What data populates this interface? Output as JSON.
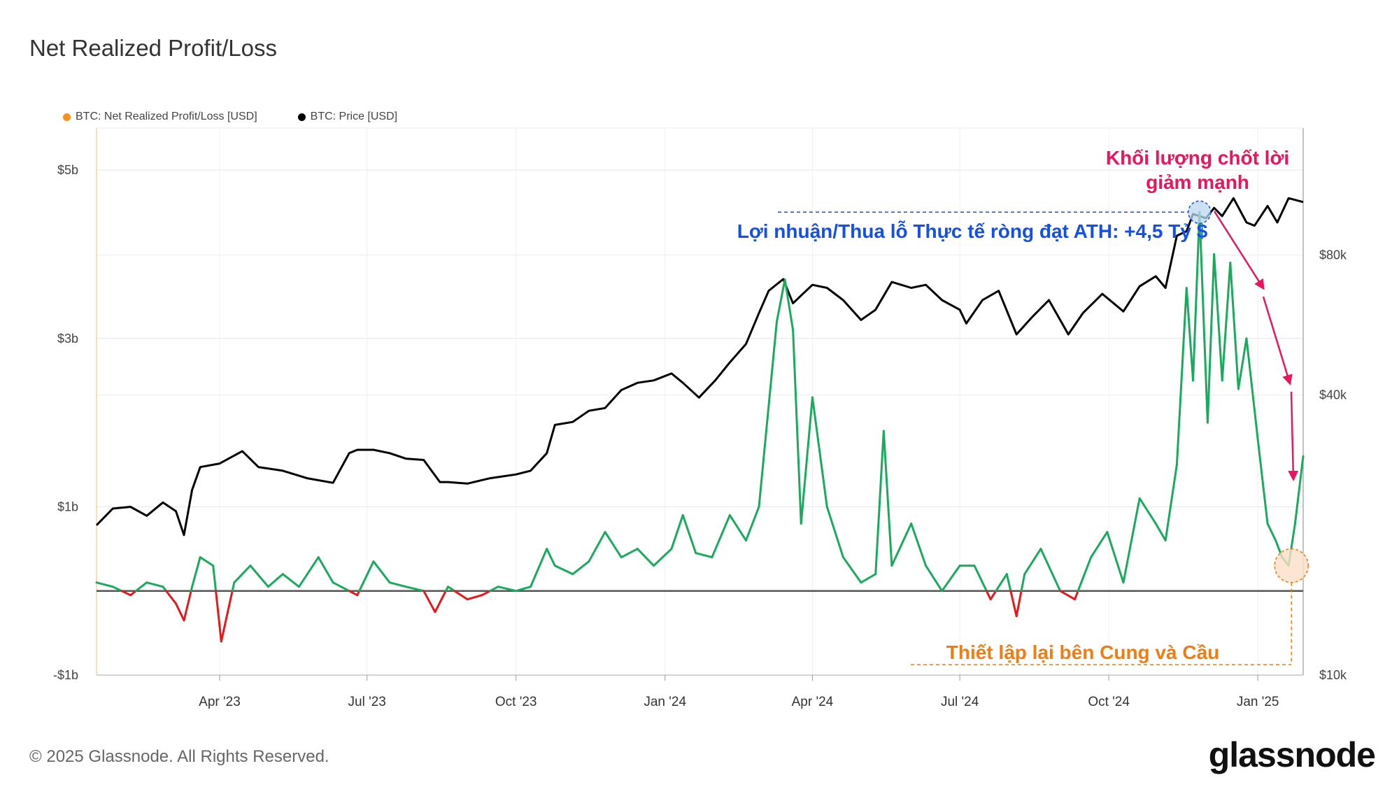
{
  "title": "Net Realized Profit/Loss",
  "legend": [
    {
      "label": "BTC: Net Realized Profit/Loss [USD]",
      "color": "#f7931a"
    },
    {
      "label": "BTC: Price [USD]",
      "color": "#000000"
    }
  ],
  "footer": "© 2025 Glassnode. All Rights Reserved.",
  "logo": "glassnode",
  "colors": {
    "profit": "#1aaa5e",
    "loss": "#e3191c",
    "price": "#000000",
    "annotation_red": "#e8175d",
    "annotation_blue": "#1450e6",
    "annotation_orange": "#f07d12"
  },
  "annotations": {
    "ath": "Lợi nhuận/Thua lỗ Thực tế ròng đạt ATH: +4,5 Tỷ $",
    "drop_line1": "Khối lượng chốt lời",
    "drop_line2": "giảm mạnh",
    "reset": "Thiết lập lại bên Cung và Cầu"
  },
  "chart_data": {
    "type": "line",
    "x_range": [
      "2023-01-15",
      "2025-01-29"
    ],
    "x_ticks": [
      "Apr '23",
      "Jul '23",
      "Oct '23",
      "Jan '24",
      "Apr '24",
      "Jul '24",
      "Oct '24",
      "Jan '25"
    ],
    "y_left": {
      "ticks": [
        "$5b",
        "$3b",
        "$1b",
        "-$1b"
      ],
      "range": [
        -1.0,
        5.5
      ],
      "unit": "USD billions"
    },
    "y_right": {
      "ticks": [
        "$80k",
        "$40k",
        "$10k"
      ],
      "scale": "log",
      "range": [
        10000,
        150000
      ],
      "unit": "USD"
    },
    "zero_line": 0,
    "series": [
      {
        "name": "BTC: Net Realized Profit/Loss [USD]",
        "axis": "left",
        "x": [
          "2023-01-15",
          "2023-01-25",
          "2023-02-05",
          "2023-02-15",
          "2023-02-25",
          "2023-03-05",
          "2023-03-10",
          "2023-03-15",
          "2023-03-20",
          "2023-03-28",
          "2023-04-02",
          "2023-04-10",
          "2023-04-20",
          "2023-05-01",
          "2023-05-10",
          "2023-05-20",
          "2023-06-01",
          "2023-06-10",
          "2023-06-20",
          "2023-06-25",
          "2023-07-05",
          "2023-07-15",
          "2023-07-25",
          "2023-08-05",
          "2023-08-12",
          "2023-08-20",
          "2023-09-01",
          "2023-09-10",
          "2023-09-20",
          "2023-10-01",
          "2023-10-10",
          "2023-10-20",
          "2023-10-25",
          "2023-11-05",
          "2023-11-15",
          "2023-11-25",
          "2023-12-05",
          "2023-12-15",
          "2023-12-25",
          "2024-01-05",
          "2024-01-12",
          "2024-01-20",
          "2024-01-30",
          "2024-02-10",
          "2024-02-20",
          "2024-02-28",
          "2024-03-05",
          "2024-03-10",
          "2024-03-15",
          "2024-03-20",
          "2024-03-25",
          "2024-04-01",
          "2024-04-10",
          "2024-04-20",
          "2024-05-01",
          "2024-05-10",
          "2024-05-15",
          "2024-05-20",
          "2024-06-01",
          "2024-06-10",
          "2024-06-20",
          "2024-07-01",
          "2024-07-10",
          "2024-07-20",
          "2024-07-30",
          "2024-08-05",
          "2024-08-10",
          "2024-08-20",
          "2024-09-01",
          "2024-09-10",
          "2024-09-20",
          "2024-09-30",
          "2024-10-10",
          "2024-10-20",
          "2024-10-30",
          "2024-11-05",
          "2024-11-12",
          "2024-11-18",
          "2024-11-22",
          "2024-11-26",
          "2024-12-01",
          "2024-12-05",
          "2024-12-10",
          "2024-12-15",
          "2024-12-20",
          "2024-12-25",
          "2025-01-01",
          "2025-01-07",
          "2025-01-12",
          "2025-01-16",
          "2025-01-20",
          "2025-01-24",
          "2025-01-29"
        ],
        "y": [
          0.1,
          0.05,
          -0.05,
          0.1,
          0.05,
          -0.15,
          -0.35,
          0.05,
          0.4,
          0.3,
          -0.6,
          0.1,
          0.3,
          0.05,
          0.2,
          0.05,
          0.4,
          0.1,
          0.0,
          -0.05,
          0.35,
          0.1,
          0.05,
          0.0,
          -0.25,
          0.05,
          -0.1,
          -0.05,
          0.05,
          0.0,
          0.05,
          0.5,
          0.3,
          0.2,
          0.35,
          0.7,
          0.4,
          0.5,
          0.3,
          0.5,
          0.9,
          0.45,
          0.4,
          0.9,
          0.6,
          1.0,
          2.2,
          3.2,
          3.7,
          3.1,
          0.8,
          2.3,
          1.0,
          0.4,
          0.1,
          0.2,
          1.9,
          0.3,
          0.8,
          0.3,
          0.0,
          0.3,
          0.3,
          -0.1,
          0.2,
          -0.3,
          0.2,
          0.5,
          0.0,
          -0.1,
          0.4,
          0.7,
          0.1,
          1.1,
          0.8,
          0.6,
          1.5,
          3.6,
          2.5,
          4.5,
          2.0,
          4.0,
          2.5,
          3.9,
          2.4,
          3.0,
          1.8,
          0.8,
          0.6,
          0.4,
          0.3,
          0.8,
          1.6
        ]
      },
      {
        "name": "BTC: Price [USD]",
        "axis": "right",
        "x": [
          "2023-01-15",
          "2023-01-25",
          "2023-02-05",
          "2023-02-15",
          "2023-02-25",
          "2023-03-05",
          "2023-03-10",
          "2023-03-15",
          "2023-03-20",
          "2023-04-01",
          "2023-04-15",
          "2023-04-25",
          "2023-05-10",
          "2023-05-25",
          "2023-06-10",
          "2023-06-20",
          "2023-06-25",
          "2023-07-05",
          "2023-07-15",
          "2023-07-25",
          "2023-08-05",
          "2023-08-15",
          "2023-08-20",
          "2023-09-01",
          "2023-09-15",
          "2023-10-01",
          "2023-10-10",
          "2023-10-20",
          "2023-10-25",
          "2023-11-05",
          "2023-11-15",
          "2023-11-25",
          "2023-12-05",
          "2023-12-15",
          "2023-12-25",
          "2024-01-05",
          "2024-01-12",
          "2024-01-22",
          "2024-02-01",
          "2024-02-10",
          "2024-02-20",
          "2024-02-28",
          "2024-03-05",
          "2024-03-14",
          "2024-03-20",
          "2024-04-01",
          "2024-04-10",
          "2024-04-20",
          "2024-05-01",
          "2024-05-10",
          "2024-05-20",
          "2024-06-01",
          "2024-06-10",
          "2024-06-20",
          "2024-07-01",
          "2024-07-05",
          "2024-07-15",
          "2024-07-25",
          "2024-08-05",
          "2024-08-15",
          "2024-08-25",
          "2024-09-06",
          "2024-09-15",
          "2024-09-27",
          "2024-10-10",
          "2024-10-20",
          "2024-10-30",
          "2024-11-05",
          "2024-11-12",
          "2024-11-18",
          "2024-11-22",
          "2024-11-30",
          "2024-12-05",
          "2024-12-10",
          "2024-12-17",
          "2024-12-25",
          "2024-12-30",
          "2025-01-07",
          "2025-01-13",
          "2025-01-20",
          "2025-01-29"
        ],
        "y": [
          21000,
          22800,
          23000,
          22000,
          23500,
          22500,
          20000,
          25000,
          28000,
          28500,
          30300,
          28000,
          27500,
          26500,
          25900,
          30000,
          30500,
          30500,
          30000,
          29200,
          29000,
          26000,
          26000,
          25800,
          26500,
          27000,
          27500,
          30000,
          34500,
          35000,
          37000,
          37500,
          41000,
          42500,
          43000,
          44500,
          42500,
          39500,
          43000,
          47000,
          51500,
          60000,
          67000,
          71000,
          63000,
          69000,
          68000,
          64000,
          58000,
          61000,
          70000,
          68000,
          69000,
          64000,
          61000,
          57000,
          64000,
          67000,
          54000,
          59000,
          64000,
          54000,
          60000,
          66000,
          60500,
          68500,
          72000,
          68000,
          88000,
          90000,
          98000,
          96000,
          101000,
          97000,
          106000,
          94000,
          92500,
          102000,
          94000,
          106000,
          104000
        ]
      }
    ]
  }
}
